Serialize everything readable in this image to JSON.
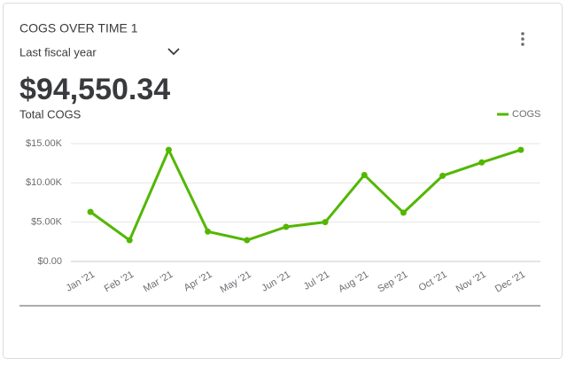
{
  "header": {
    "title": "COGS OVER TIME 1",
    "period": "Last fiscal year",
    "total": "$94,550.34",
    "total_label": "Total COGS"
  },
  "chart_data": {
    "type": "line",
    "categories": [
      "Jan '21",
      "Feb '21",
      "Mar '21",
      "Apr '21",
      "May '21",
      "Jun '21",
      "Jul '21",
      "Aug '21",
      "Sep '21",
      "Oct '21",
      "Nov '21",
      "Dec '21"
    ],
    "series": [
      {
        "name": "COGS",
        "color": "#53b700",
        "values": [
          6300,
          2700,
          14200,
          3800,
          2700,
          4400,
          5000,
          11000,
          6200,
          10900,
          12600,
          14200
        ]
      }
    ],
    "ylim": [
      0,
      15000
    ],
    "yticks": [
      {
        "value": 0,
        "label": "$0.00"
      },
      {
        "value": 5000,
        "label": "$5.00K"
      },
      {
        "value": 10000,
        "label": "$10.00K"
      },
      {
        "value": 15000,
        "label": "$15.00K"
      }
    ],
    "grid": true,
    "legend": "top-right"
  }
}
